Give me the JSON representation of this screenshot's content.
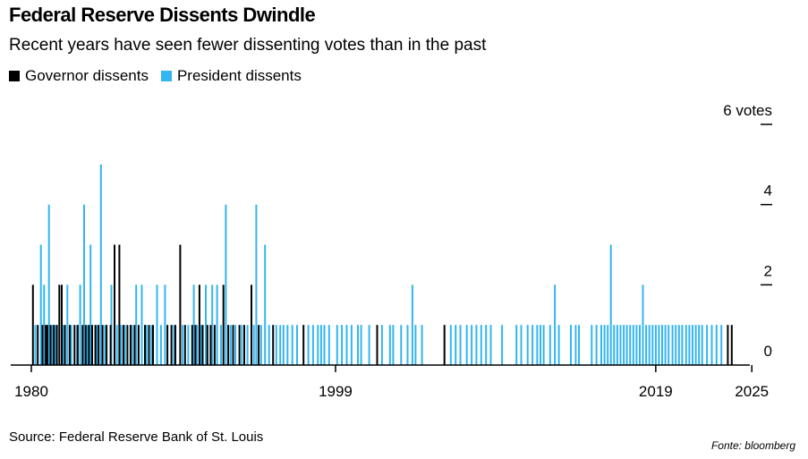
{
  "title": "Federal Reserve Dissents Dwindle",
  "subtitle": "Recent years have seen fewer dissenting votes than in the past",
  "source": "Source: Federal Reserve Bank of St. Louis",
  "credit": "Fonte: bloomberg",
  "colors": {
    "governor": "#000000",
    "president": "#33b5f0",
    "axis": "#000000"
  },
  "chart_data": {
    "type": "bar",
    "x_range": [
      1980,
      2027
    ],
    "ylim": [
      0,
      6
    ],
    "y_ticks": [
      {
        "value": 0,
        "label": "0"
      },
      {
        "value": 2,
        "label": "2"
      },
      {
        "value": 4,
        "label": "4"
      },
      {
        "value": 6,
        "label": "6 votes"
      }
    ],
    "x_ticks": [
      {
        "value": 1980,
        "label": "1980"
      },
      {
        "value": 1999,
        "label": "1999"
      },
      {
        "value": 2019,
        "label": "2019"
      },
      {
        "value": 2025,
        "label": "2025"
      }
    ],
    "series": [
      {
        "name": "Governor dissents",
        "color": "#000000",
        "points": [
          [
            1980.1,
            2
          ],
          [
            1980.4,
            1
          ],
          [
            1980.7,
            1
          ],
          [
            1980.9,
            1
          ],
          [
            1981.0,
            1
          ],
          [
            1981.2,
            1
          ],
          [
            1981.4,
            1
          ],
          [
            1981.6,
            1
          ],
          [
            1981.75,
            2
          ],
          [
            1981.9,
            2
          ],
          [
            1982.1,
            1
          ],
          [
            1982.4,
            1
          ],
          [
            1982.7,
            1
          ],
          [
            1982.9,
            1
          ],
          [
            1983.2,
            1
          ],
          [
            1983.4,
            1
          ],
          [
            1983.6,
            1
          ],
          [
            1983.8,
            1
          ],
          [
            1984.0,
            1
          ],
          [
            1984.2,
            1
          ],
          [
            1984.45,
            1
          ],
          [
            1984.7,
            1
          ],
          [
            1984.95,
            1
          ],
          [
            1985.2,
            3
          ],
          [
            1985.5,
            3
          ],
          [
            1985.75,
            1
          ],
          [
            1986.0,
            1
          ],
          [
            1986.2,
            1
          ],
          [
            1986.45,
            1
          ],
          [
            1986.7,
            1
          ],
          [
            1987.1,
            1
          ],
          [
            1987.35,
            1
          ],
          [
            1987.6,
            1
          ],
          [
            1988.5,
            1
          ],
          [
            1988.75,
            1
          ],
          [
            1989.0,
            1
          ],
          [
            1989.3,
            3
          ],
          [
            1989.6,
            1
          ],
          [
            1990.05,
            1
          ],
          [
            1990.25,
            1
          ],
          [
            1990.5,
            2
          ],
          [
            1990.7,
            1
          ],
          [
            1991.0,
            1
          ],
          [
            1991.2,
            1
          ],
          [
            1991.45,
            1
          ],
          [
            1992.0,
            2
          ],
          [
            1992.3,
            1
          ],
          [
            1992.6,
            1
          ],
          [
            1993.0,
            1
          ],
          [
            1993.3,
            1
          ],
          [
            1993.75,
            2
          ],
          [
            1994.2,
            1
          ],
          [
            1995.1,
            1
          ],
          [
            1997.0,
            1
          ],
          [
            2001.6,
            1
          ],
          [
            2005.8,
            1
          ],
          [
            2023.5,
            1
          ],
          [
            2023.75,
            1
          ]
        ]
      },
      {
        "name": "President dissents",
        "color": "#33b5f0",
        "points": [
          [
            1980.25,
            1
          ],
          [
            1980.6,
            3
          ],
          [
            1980.8,
            2
          ],
          [
            1981.1,
            4
          ],
          [
            1981.3,
            1
          ],
          [
            1981.5,
            1
          ],
          [
            1982.0,
            1
          ],
          [
            1982.25,
            2
          ],
          [
            1982.5,
            1
          ],
          [
            1982.85,
            1
          ],
          [
            1983.05,
            2
          ],
          [
            1983.3,
            4
          ],
          [
            1983.5,
            1
          ],
          [
            1983.7,
            3
          ],
          [
            1984.1,
            1
          ],
          [
            1984.35,
            5
          ],
          [
            1984.6,
            1
          ],
          [
            1985.0,
            2
          ],
          [
            1985.35,
            1
          ],
          [
            1985.6,
            1
          ],
          [
            1985.85,
            1
          ],
          [
            1986.3,
            1
          ],
          [
            1986.55,
            2
          ],
          [
            1986.9,
            2
          ],
          [
            1987.2,
            1
          ],
          [
            1987.5,
            1
          ],
          [
            1987.85,
            2
          ],
          [
            1988.1,
            1
          ],
          [
            1988.35,
            2
          ],
          [
            1988.9,
            1
          ],
          [
            1989.45,
            1
          ],
          [
            1989.8,
            1
          ],
          [
            1990.15,
            2
          ],
          [
            1990.35,
            1
          ],
          [
            1990.6,
            1
          ],
          [
            1990.9,
            2
          ],
          [
            1991.3,
            2
          ],
          [
            1991.6,
            2
          ],
          [
            1991.85,
            1
          ],
          [
            1992.15,
            4
          ],
          [
            1992.45,
            1
          ],
          [
            1992.75,
            1
          ],
          [
            1993.15,
            1
          ],
          [
            1993.5,
            1
          ],
          [
            1993.9,
            1
          ],
          [
            1994.05,
            4
          ],
          [
            1994.35,
            1
          ],
          [
            1994.6,
            3
          ],
          [
            1994.85,
            1
          ],
          [
            1995.3,
            1
          ],
          [
            1995.55,
            1
          ],
          [
            1995.75,
            1
          ],
          [
            1996.0,
            1
          ],
          [
            1996.3,
            1
          ],
          [
            1996.6,
            1
          ],
          [
            1997.3,
            1
          ],
          [
            1997.6,
            1
          ],
          [
            1997.9,
            1
          ],
          [
            1998.1,
            1
          ],
          [
            1998.3,
            1
          ],
          [
            1998.6,
            1
          ],
          [
            1999.1,
            1
          ],
          [
            1999.4,
            1
          ],
          [
            1999.7,
            1
          ],
          [
            2000.0,
            1
          ],
          [
            2000.4,
            1
          ],
          [
            2000.6,
            1
          ],
          [
            2001.1,
            1
          ],
          [
            2001.9,
            1
          ],
          [
            2002.4,
            1
          ],
          [
            2002.6,
            1
          ],
          [
            2003.1,
            1
          ],
          [
            2003.5,
            1
          ],
          [
            2003.8,
            2
          ],
          [
            2004.0,
            1
          ],
          [
            2004.4,
            1
          ],
          [
            2006.2,
            1
          ],
          [
            2006.5,
            1
          ],
          [
            2006.8,
            1
          ],
          [
            2007.2,
            1
          ],
          [
            2007.5,
            1
          ],
          [
            2007.8,
            1
          ],
          [
            2008.1,
            1
          ],
          [
            2008.4,
            1
          ],
          [
            2008.7,
            1
          ],
          [
            2009.4,
            1
          ],
          [
            2010.3,
            1
          ],
          [
            2010.6,
            1
          ],
          [
            2011.0,
            1
          ],
          [
            2011.3,
            1
          ],
          [
            2011.6,
            1
          ],
          [
            2011.8,
            1
          ],
          [
            2012.0,
            1
          ],
          [
            2012.4,
            1
          ],
          [
            2012.7,
            2
          ],
          [
            2012.95,
            1
          ],
          [
            2013.7,
            1
          ],
          [
            2014.0,
            1
          ],
          [
            2014.2,
            1
          ],
          [
            2015.0,
            1
          ],
          [
            2015.3,
            1
          ],
          [
            2015.6,
            1
          ],
          [
            2015.8,
            1
          ],
          [
            2016.0,
            1
          ],
          [
            2016.2,
            3
          ],
          [
            2016.4,
            1
          ],
          [
            2016.6,
            1
          ],
          [
            2016.8,
            1
          ],
          [
            2017.0,
            1
          ],
          [
            2017.2,
            1
          ],
          [
            2017.4,
            1
          ],
          [
            2017.6,
            1
          ],
          [
            2017.8,
            1
          ],
          [
            2018.0,
            1
          ],
          [
            2018.2,
            2
          ],
          [
            2018.4,
            1
          ],
          [
            2018.6,
            1
          ],
          [
            2018.8,
            1
          ],
          [
            2019.0,
            1
          ],
          [
            2019.2,
            1
          ],
          [
            2019.4,
            1
          ],
          [
            2019.6,
            1
          ],
          [
            2019.8,
            1
          ],
          [
            2020.05,
            1
          ],
          [
            2020.25,
            1
          ],
          [
            2020.45,
            1
          ],
          [
            2020.65,
            1
          ],
          [
            2020.9,
            1
          ],
          [
            2021.1,
            1
          ],
          [
            2021.3,
            1
          ],
          [
            2021.5,
            1
          ],
          [
            2021.7,
            1
          ],
          [
            2021.9,
            1
          ],
          [
            2022.2,
            1
          ],
          [
            2022.5,
            1
          ],
          [
            2022.8,
            1
          ],
          [
            2023.1,
            1
          ]
        ]
      }
    ]
  }
}
